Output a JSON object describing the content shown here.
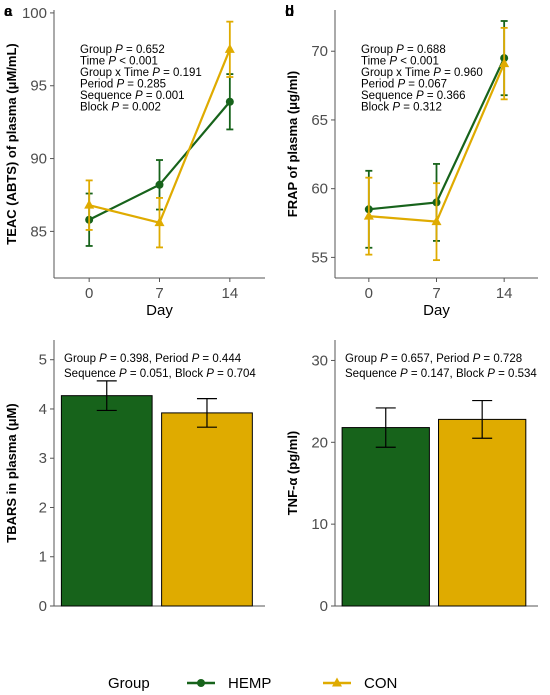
{
  "colors": {
    "hemp": "#17631b",
    "con": "#dfab00",
    "axis": "#555555",
    "tick": "#4d4d4d"
  },
  "chart_data": [
    {
      "panel": "a",
      "type": "line",
      "x": [
        0,
        7,
        14
      ],
      "xticks": [
        "0",
        "7",
        "14"
      ],
      "xlabel": "Day",
      "ylabel": "TEAC (ABTS) of plasma (μM/mL)",
      "ylim": [
        81.8,
        100.2
      ],
      "yticks": [
        85,
        90,
        95,
        100
      ],
      "series": [
        {
          "name": "HEMP",
          "marker": "circle",
          "values": [
            85.8,
            88.2,
            93.9
          ],
          "err": [
            1.8,
            1.7,
            1.9
          ]
        },
        {
          "name": "CON",
          "marker": "triangle",
          "values": [
            86.8,
            85.6,
            97.5
          ],
          "err": [
            1.7,
            1.7,
            1.9
          ]
        }
      ],
      "annotations": [
        "Group P = 0.652",
        "Time P < 0.001",
        "Group x Time P = 0.191",
        "Period P = 0.285",
        "Sequence P = 0.001",
        "Block P = 0.002"
      ]
    },
    {
      "panel": "b",
      "type": "line",
      "x": [
        0,
        7,
        14
      ],
      "xticks": [
        "0",
        "7",
        "14"
      ],
      "xlabel": "Day",
      "ylabel": "FRAP of plasma  (μg/ml)",
      "ylim": [
        53.5,
        73
      ],
      "yticks": [
        55,
        60,
        65,
        70
      ],
      "series": [
        {
          "name": "HEMP",
          "marker": "circle",
          "values": [
            58.5,
            59.0,
            69.5
          ],
          "err": [
            2.8,
            2.8,
            2.7
          ]
        },
        {
          "name": "CON",
          "marker": "triangle",
          "values": [
            58.0,
            57.6,
            69.1
          ],
          "err": [
            2.8,
            2.8,
            2.6
          ]
        }
      ],
      "annotations": [
        "Group P = 0.688",
        "Time P < 0.001",
        "Group x Time P = 0.960",
        "Period P = 0.067",
        "Sequence P = 0.366",
        "Block P = 0.312"
      ]
    },
    {
      "panel": "c",
      "type": "bar",
      "categories": [
        "HEMP",
        "CON"
      ],
      "ylabel": "TBARS in plasma (μM)",
      "ylim": [
        0,
        5.4
      ],
      "yticks": [
        0,
        1,
        2,
        3,
        4,
        5
      ],
      "values": [
        4.27,
        3.92
      ],
      "err": [
        0.3,
        0.29
      ],
      "annotations": [
        "Group P = 0.398, Period P = 0.444",
        "Sequence P = 0.051, Block P = 0.704"
      ]
    },
    {
      "panel": "d",
      "type": "bar",
      "categories": [
        "HEMP",
        "CON"
      ],
      "ylabel": "TNF-α (pg/ml)",
      "ylim": [
        0,
        32.5
      ],
      "yticks": [
        0,
        10,
        20,
        30
      ],
      "values": [
        21.8,
        22.8
      ],
      "err": [
        2.4,
        2.3
      ],
      "annotations": [
        "Group P = 0.657, Period P = 0.728",
        "Sequence P = 0.147, Block P = 0.534"
      ]
    }
  ],
  "legend": {
    "title": "Group",
    "items": [
      {
        "label": "HEMP",
        "marker": "circle"
      },
      {
        "label": "CON",
        "marker": "triangle"
      }
    ]
  }
}
